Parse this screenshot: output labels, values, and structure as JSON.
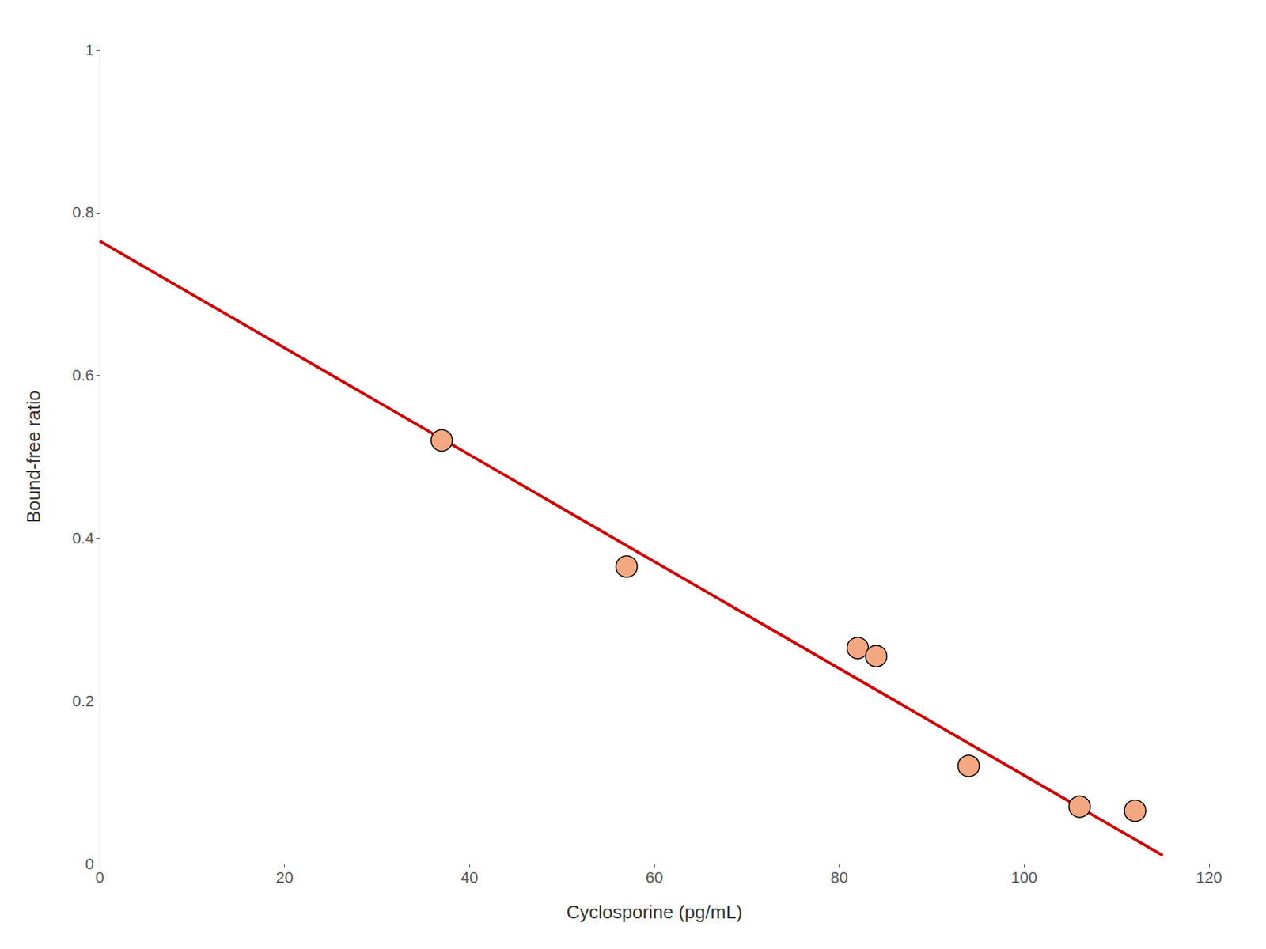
{
  "chart_data": {
    "type": "scatter",
    "xlabel": "Cyclosporine (pg/mL)",
    "ylabel": "Bound-free ratio",
    "series": [
      {
        "type": "scatter",
        "marker": "circle",
        "color": "#F4A882",
        "x": [
          37,
          57,
          82,
          84,
          94,
          106,
          112
        ],
        "values": [
          0.52,
          0.365,
          0.265,
          0.255,
          0.12,
          0.07,
          0.065
        ]
      },
      {
        "type": "line",
        "line_style": "solid",
        "color": "#CC0000",
        "x": [
          0,
          115
        ],
        "values": [
          0.765,
          0.01
        ]
      }
    ],
    "xlim": [
      0,
      120
    ],
    "ylim": [
      0,
      1.0
    ],
    "xticks": [
      0,
      20,
      40,
      60,
      80,
      100,
      120
    ],
    "yticks": [
      0,
      0.2,
      0.4,
      0.6,
      0.8,
      1
    ],
    "grid": false
  }
}
